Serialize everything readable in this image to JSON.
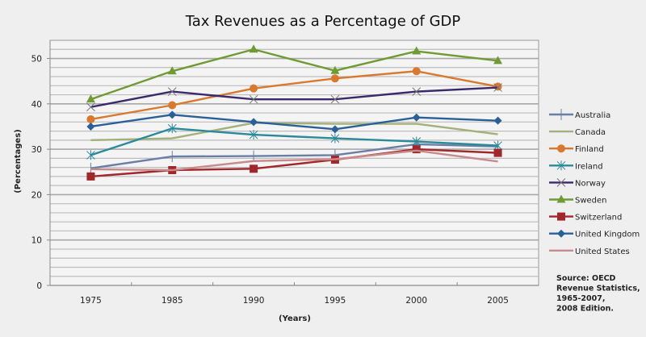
{
  "chart_data": {
    "type": "line",
    "title": "Tax Revenues as a Percentage of GDP",
    "xlabel": "(Years)",
    "ylabel": "(Percentages)",
    "categories": [
      "1975",
      "1985",
      "1990",
      "1995",
      "2000",
      "2005"
    ],
    "ylim": [
      0,
      54
    ],
    "yticks": [
      0,
      10,
      20,
      30,
      40,
      50
    ],
    "minor_grid_step": 2,
    "grid": true,
    "legend_position": "right",
    "series": [
      {
        "name": "Australia",
        "color": "#6a7fa6",
        "marker": "plus",
        "values": [
          25.8,
          28.4,
          28.5,
          28.7,
          31.1,
          30.6
        ]
      },
      {
        "name": "Canada",
        "color": "#a4b07a",
        "marker": "none",
        "values": [
          32.0,
          32.4,
          35.8,
          35.6,
          35.6,
          33.3
        ]
      },
      {
        "name": "Finland",
        "color": "#d9782f",
        "marker": "circle",
        "values": [
          36.6,
          39.7,
          43.4,
          45.6,
          47.2,
          43.8
        ]
      },
      {
        "name": "Ireland",
        "color": "#2b8a9a",
        "marker": "star",
        "values": [
          28.7,
          34.6,
          33.2,
          32.4,
          31.7,
          30.8
        ]
      },
      {
        "name": "Norway",
        "color": "#3b2a6b",
        "marker": "x",
        "values": [
          39.3,
          42.7,
          41.0,
          41.0,
          42.7,
          43.6
        ]
      },
      {
        "name": "Sweden",
        "color": "#6f9a34",
        "marker": "triangle",
        "values": [
          41.0,
          47.2,
          52.0,
          47.3,
          51.6,
          49.5
        ]
      },
      {
        "name": "Switzerland",
        "color": "#a1272b",
        "marker": "square",
        "values": [
          24.0,
          25.4,
          25.7,
          27.7,
          30.0,
          29.2
        ]
      },
      {
        "name": "United Kingdom",
        "color": "#2a5f98",
        "marker": "diamond",
        "values": [
          35.0,
          37.6,
          36.0,
          34.4,
          37.0,
          36.3
        ]
      },
      {
        "name": "United States",
        "color": "#c98a8c",
        "marker": "none",
        "values": [
          25.6,
          25.4,
          27.4,
          27.8,
          29.7,
          27.3
        ]
      }
    ],
    "annotation": [
      "Source: OECD",
      "Revenue Statistics,",
      "1965-2007,",
      "2008 Edition."
    ]
  }
}
